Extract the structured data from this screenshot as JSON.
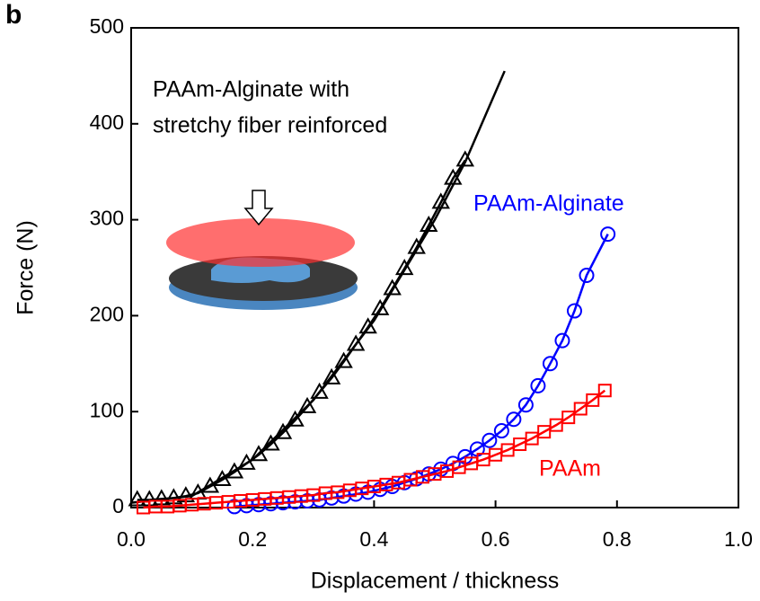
{
  "chart_data": {
    "type": "line",
    "panel_label": "b",
    "x_label": "Displacement / thickness",
    "y_label": "Force (N)",
    "xlim": [
      0,
      1
    ],
    "ylim": [
      0,
      500
    ],
    "xticks": [
      {
        "value": 0,
        "label": "0.0"
      },
      0.2,
      0.4,
      0.6,
      0.8,
      {
        "value": 1,
        "label": "1.0"
      }
    ],
    "yticks": [
      0,
      100,
      200,
      300,
      400,
      500
    ],
    "annotations": [
      {
        "text": "PAAm-Alginate with",
        "color": "#000000"
      },
      {
        "text": "stretchy fiber reinforced",
        "color": "#000000"
      },
      {
        "text": "PAAm-Alginate",
        "color": "#0000ff"
      },
      {
        "text": "PAAm",
        "color": "#ff0000"
      }
    ],
    "series": [
      {
        "color": "#000000",
        "marker": "none",
        "x": [
          0,
          0.1,
          0.2,
          0.3,
          0.4,
          0.5,
          0.55,
          0.615
        ],
        "values": [
          5,
          12,
          50,
          112,
          195,
          300,
          360,
          455
        ]
      },
      {
        "color": "#000000",
        "marker": "triangle",
        "x": [
          0.01,
          0.03,
          0.05,
          0.07,
          0.09,
          0.11,
          0.13,
          0.15,
          0.17,
          0.19,
          0.21,
          0.23,
          0.25,
          0.27,
          0.29,
          0.31,
          0.33,
          0.35,
          0.37,
          0.39,
          0.41,
          0.43,
          0.45,
          0.47,
          0.49,
          0.51,
          0.53,
          0.55
        ],
        "values": [
          8,
          8,
          9,
          10,
          12,
          15,
          22,
          29,
          37,
          46,
          55,
          66,
          78,
          91,
          105,
          120,
          135,
          152,
          170,
          188,
          207,
          228,
          249,
          271,
          294,
          318,
          343,
          362
        ]
      },
      {
        "color": "#0000ff",
        "marker": "circle",
        "x": [
          0.17,
          0.19,
          0.21,
          0.23,
          0.25,
          0.27,
          0.29,
          0.31,
          0.33,
          0.35,
          0.37,
          0.39,
          0.41,
          0.43,
          0.45,
          0.47,
          0.49,
          0.51,
          0.53,
          0.55,
          0.57,
          0.59,
          0.61,
          0.63,
          0.65,
          0.67,
          0.69,
          0.71,
          0.73,
          0.75,
          0.785
        ],
        "values": [
          1,
          2,
          3,
          4,
          5,
          6,
          7,
          8,
          10,
          12,
          14,
          16,
          19,
          22,
          26,
          30,
          35,
          40,
          46,
          53,
          61,
          70,
          80,
          92,
          107,
          127,
          150,
          174,
          205,
          242,
          285
        ]
      },
      {
        "color": "#ff0000",
        "marker": "square",
        "x": [
          0.02,
          0.04,
          0.06,
          0.08,
          0.1,
          0.12,
          0.14,
          0.16,
          0.18,
          0.2,
          0.22,
          0.24,
          0.26,
          0.28,
          0.3,
          0.32,
          0.34,
          0.36,
          0.38,
          0.4,
          0.42,
          0.44,
          0.46,
          0.48,
          0.5,
          0.52,
          0.54,
          0.56,
          0.58,
          0.6,
          0.62,
          0.64,
          0.66,
          0.68,
          0.7,
          0.72,
          0.74,
          0.76,
          0.78
        ],
        "values": [
          0,
          1,
          1,
          2,
          3,
          4,
          5,
          6,
          7,
          8,
          9,
          10,
          11,
          12,
          13,
          15,
          16,
          18,
          20,
          22,
          24,
          26,
          29,
          32,
          35,
          38,
          42,
          46,
          50,
          55,
          60,
          66,
          72,
          79,
          86,
          94,
          103,
          112,
          122
        ]
      }
    ]
  }
}
